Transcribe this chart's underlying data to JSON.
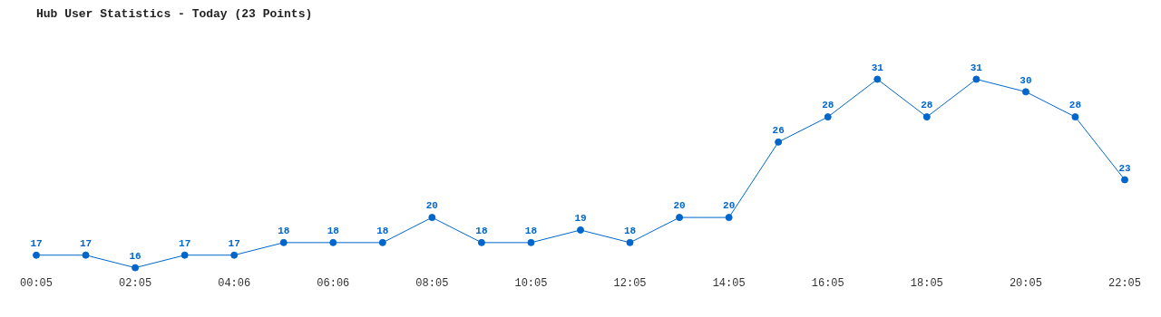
{
  "chart_data": {
    "type": "line",
    "title": "Hub User Statistics - Today (23 Points)",
    "categories": [
      "00:05",
      null,
      "02:05",
      null,
      "04:06",
      null,
      "06:06",
      null,
      "08:05",
      null,
      "10:05",
      null,
      "12:05",
      null,
      "14:05",
      null,
      "16:05",
      null,
      "18:05",
      null,
      "20:05",
      null,
      "22:05"
    ],
    "series": [
      {
        "color": "#0066cc",
        "values": [
          17,
          17,
          16,
          17,
          17,
          18,
          18,
          18,
          20,
          18,
          18,
          19,
          18,
          20,
          20,
          26,
          28,
          31,
          28,
          31,
          30,
          28,
          23
        ]
      }
    ],
    "data_labels": true,
    "marker": "circle",
    "line_style": "solid",
    "grid": false,
    "legend": false
  }
}
